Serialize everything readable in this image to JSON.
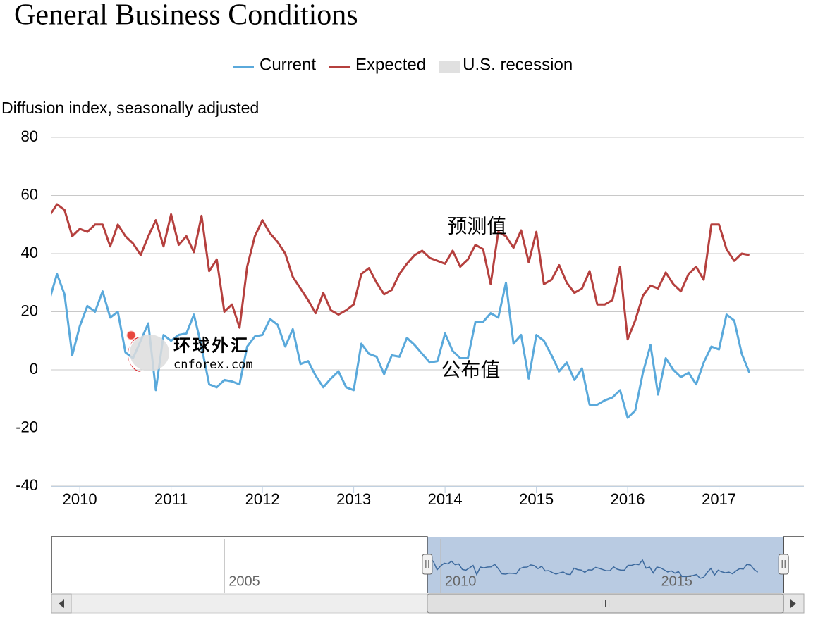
{
  "chart_data": {
    "type": "line",
    "title": "General Business Conditions",
    "y_label": "Diffusion index, seasonally adjusted",
    "x": [
      2009.667,
      2009.75,
      2009.833,
      2009.917,
      2010,
      2010.083,
      2010.167,
      2010.25,
      2010.333,
      2010.417,
      2010.5,
      2010.583,
      2010.667,
      2010.75,
      2010.833,
      2010.917,
      2011,
      2011.083,
      2011.167,
      2011.25,
      2011.333,
      2011.417,
      2011.5,
      2011.583,
      2011.667,
      2011.75,
      2011.833,
      2011.917,
      2012,
      2012.083,
      2012.167,
      2012.25,
      2012.333,
      2012.417,
      2012.5,
      2012.583,
      2012.667,
      2012.75,
      2012.833,
      2012.917,
      2013,
      2013.083,
      2013.167,
      2013.25,
      2013.333,
      2013.417,
      2013.5,
      2013.583,
      2013.667,
      2013.75,
      2013.833,
      2013.917,
      2014,
      2014.083,
      2014.167,
      2014.25,
      2014.333,
      2014.417,
      2014.5,
      2014.583,
      2014.667,
      2014.75,
      2014.833,
      2014.917,
      2015,
      2015.083,
      2015.167,
      2015.25,
      2015.333,
      2015.417,
      2015.5,
      2015.583,
      2015.667,
      2015.75,
      2015.833,
      2015.917,
      2016,
      2016.083,
      2016.167,
      2016.25,
      2016.333,
      2016.417,
      2016.5,
      2016.583,
      2016.667,
      2016.75,
      2016.833,
      2016.917,
      2017,
      2017.083,
      2017.167,
      2017.25,
      2017.333
    ],
    "series": [
      {
        "name": "Current",
        "color": "#5aa9db",
        "values": [
          24,
          33,
          26,
          5,
          15,
          22,
          20,
          27,
          18,
          20,
          6,
          4,
          10,
          16,
          -7,
          12,
          10,
          12,
          12.5,
          19,
          8,
          -5,
          -6,
          -3.5,
          -4,
          -5,
          8,
          11.5,
          12,
          17.5,
          15.5,
          8,
          14,
          2,
          3,
          -2,
          -6,
          -3,
          -0.5,
          -6,
          -7,
          9,
          5.5,
          4.5,
          -1.5,
          5,
          4.5,
          11,
          8.5,
          5.5,
          2.5,
          3,
          12.5,
          6.5,
          4,
          4,
          16.5,
          16.5,
          19.5,
          18,
          30,
          9,
          12,
          -3,
          12,
          10,
          5,
          -0.5,
          2.5,
          -3.5,
          0.5,
          -12,
          -12,
          -10.5,
          -9.5,
          -7,
          -16.5,
          -14,
          -1,
          8.5,
          -8.5,
          4,
          0,
          -2.5,
          -1,
          -5,
          2.5,
          8,
          7,
          19,
          17,
          5.5,
          -1
        ]
      },
      {
        "name": "Expected",
        "color": "#b5403e",
        "values": [
          53,
          57,
          55,
          46,
          48.5,
          47.5,
          50,
          50,
          42.5,
          50,
          46,
          43.5,
          39.5,
          46,
          51.5,
          42.5,
          53.5,
          43,
          46,
          40.5,
          53,
          34,
          38,
          20,
          22.5,
          14.5,
          35.5,
          46,
          51.5,
          47,
          44,
          40,
          32,
          28,
          24,
          19.5,
          26.5,
          20.5,
          19,
          20.5,
          22.5,
          33,
          35,
          30,
          26,
          27.5,
          33,
          36.5,
          39.5,
          41,
          38.5,
          37.5,
          36.5,
          41,
          35.5,
          38,
          43,
          41.5,
          29.5,
          47.5,
          46,
          42,
          48,
          37,
          47.5,
          29.5,
          31,
          36,
          30,
          26.5,
          28,
          34,
          22.5,
          22.5,
          24,
          35.5,
          10.5,
          17,
          25.5,
          29,
          28,
          33.5,
          29.5,
          27,
          33,
          35.5,
          31,
          50,
          50,
          41.5,
          37.5,
          40,
          39.5
        ]
      }
    ],
    "recession": {
      "name": "U.S. recession",
      "color": "#e0e0e0"
    },
    "xlim": [
      2009.69,
      2017.93
    ],
    "xticks": [
      2010,
      2011,
      2012,
      2013,
      2014,
      2015,
      2016,
      2017
    ],
    "ylim": [
      -40,
      80
    ],
    "yticks": [
      -40,
      -20,
      0,
      20,
      40,
      60,
      80
    ],
    "grid": true,
    "annotations": [
      {
        "text": "预测值",
        "x": 2014.35,
        "y": 49
      },
      {
        "text": "公布值",
        "x": 2014.28,
        "y": -0.5
      }
    ],
    "watermark": {
      "name": "环球外汇",
      "url": "cnforex.com"
    },
    "navigator": {
      "xlim": [
        2001,
        2018.4
      ],
      "xticks": [
        2005,
        2010,
        2015
      ]
    }
  }
}
